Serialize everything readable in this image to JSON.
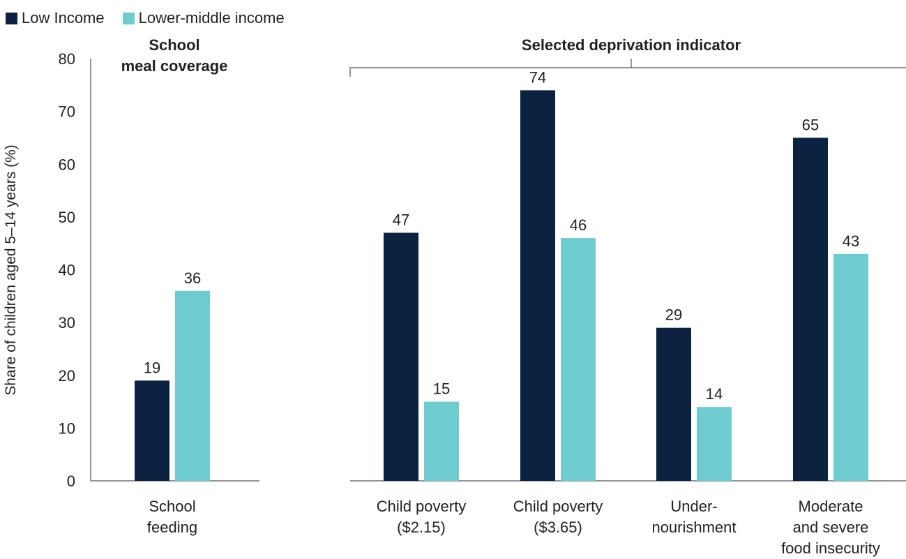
{
  "legend": {
    "items": [
      {
        "label": "Low Income",
        "color": "#0b2240"
      },
      {
        "label": "Lower-middle income",
        "color": "#6ecbd0"
      }
    ]
  },
  "chart_data": [
    {
      "type": "bar",
      "title": "School meal coverage",
      "title_lines": [
        "School",
        "meal coverage"
      ],
      "ylabel": "Share of children aged 5–14 years (%)",
      "ylim": [
        0,
        80
      ],
      "yticks": [
        0,
        10,
        20,
        30,
        40,
        50,
        60,
        70,
        80
      ],
      "categories": [
        {
          "lines": [
            "School",
            "feeding"
          ]
        }
      ],
      "series": [
        {
          "name": "Low Income",
          "color": "#0b2240",
          "values": [
            19
          ]
        },
        {
          "name": "Lower-middle income",
          "color": "#6ecbd0",
          "values": [
            36
          ]
        }
      ]
    },
    {
      "type": "bar",
      "title": "Selected deprivation indicator",
      "ylim": [
        0,
        80
      ],
      "categories": [
        {
          "lines": [
            "Child poverty",
            "($2.15)"
          ]
        },
        {
          "lines": [
            "Child poverty",
            "($3.65)"
          ]
        },
        {
          "lines": [
            "Under-",
            "nourishment"
          ]
        },
        {
          "lines": [
            "Moderate",
            "and severe",
            "food insecurity"
          ]
        }
      ],
      "series": [
        {
          "name": "Low Income",
          "color": "#0b2240",
          "values": [
            47,
            74,
            29,
            65
          ]
        },
        {
          "name": "Lower-middle income",
          "color": "#6ecbd0",
          "values": [
            15,
            46,
            14,
            43
          ]
        }
      ]
    }
  ]
}
